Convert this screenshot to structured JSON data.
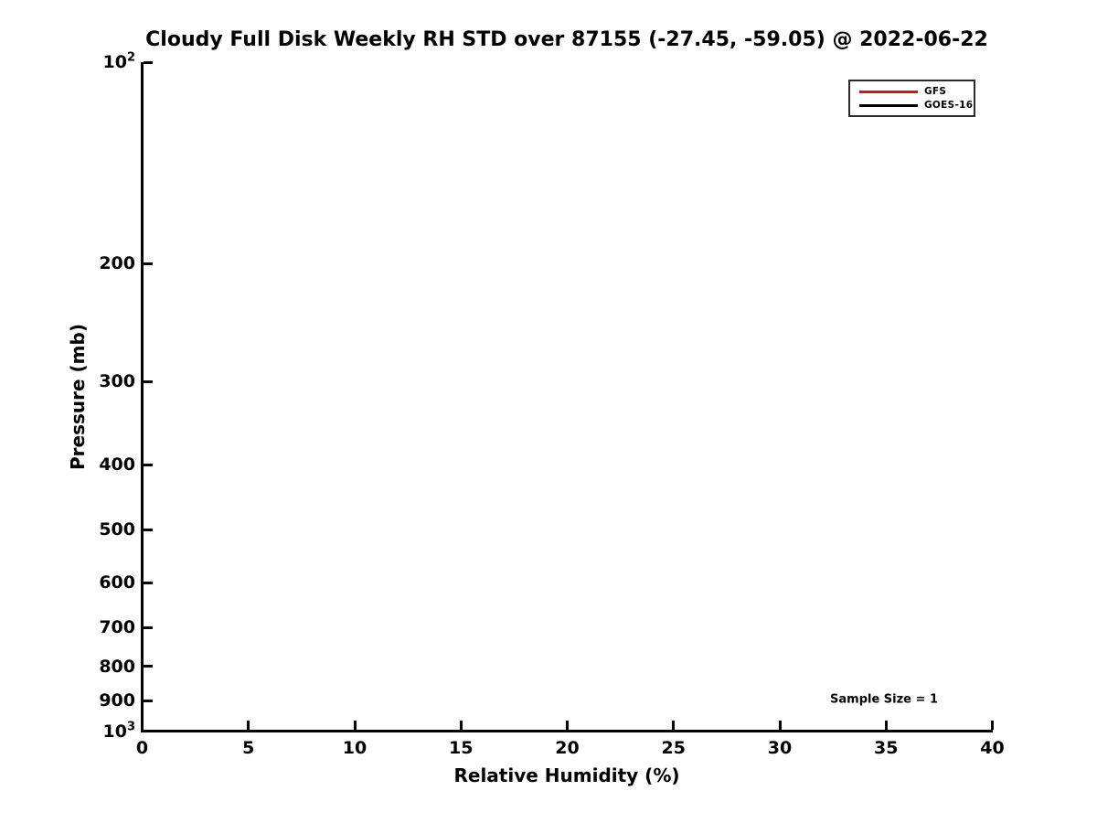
{
  "chart_data": {
    "type": "line",
    "title": "Cloudy Full Disk Weekly RH STD over 87155 (-27.45, -59.05) @ 2022-06-22",
    "xlabel": "Relative Humidity (%)",
    "ylabel": "Pressure (mb)",
    "x_axis": {
      "scale": "linear",
      "min": 0,
      "max": 40,
      "ticks": [
        0,
        5,
        10,
        15,
        20,
        25,
        30,
        35,
        40
      ]
    },
    "y_axis": {
      "scale": "log10",
      "min": 100,
      "max": 1000,
      "direction": "increasing-downward",
      "ticks": [
        {
          "value": 100,
          "label": "10",
          "sup": "2"
        },
        {
          "value": 200,
          "label": "200"
        },
        {
          "value": 300,
          "label": "300"
        },
        {
          "value": 400,
          "label": "400"
        },
        {
          "value": 500,
          "label": "500"
        },
        {
          "value": 600,
          "label": "600"
        },
        {
          "value": 700,
          "label": "700"
        },
        {
          "value": 800,
          "label": "800"
        },
        {
          "value": 900,
          "label": "900"
        },
        {
          "value": 1000,
          "label": "10",
          "sup": "3"
        }
      ]
    },
    "series": [
      {
        "name": "GFS",
        "color": "#cc1a1a",
        "points": []
      },
      {
        "name": "GOES-16",
        "color": "#000000",
        "points": []
      }
    ],
    "legend_position": "upper-right",
    "grid": false,
    "annotations": [
      {
        "text": "Sample Size = 1",
        "x": 35,
        "y": 900
      }
    ]
  }
}
